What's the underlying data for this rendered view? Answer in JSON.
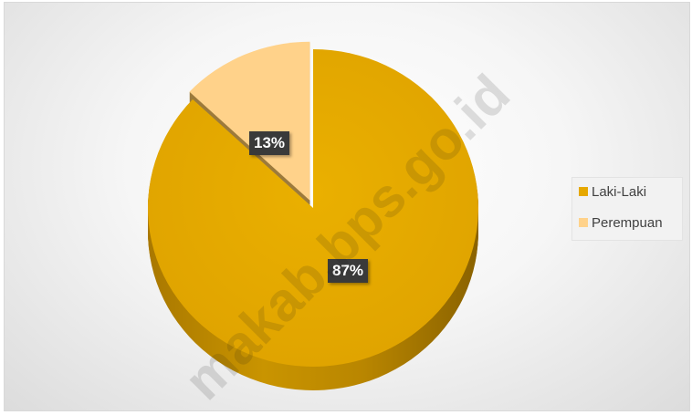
{
  "chart_data": {
    "type": "pie",
    "variant": "3d-exploded",
    "categories": [
      "Laki-Laki",
      "Perempuan"
    ],
    "values": [
      87,
      13
    ],
    "data_labels": [
      "87%",
      "13%"
    ],
    "colors": [
      "#E6A800",
      "#FFD28A"
    ],
    "legend": {
      "placement": "right",
      "entries": [
        "Laki-Laki",
        "Perempuan"
      ]
    },
    "title": "",
    "grid": false
  },
  "watermark": "makab.bps.go.id"
}
